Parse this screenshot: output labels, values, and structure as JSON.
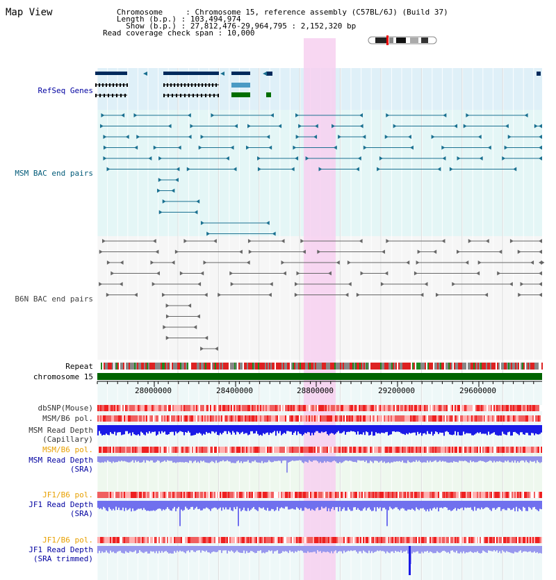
{
  "view": {
    "title": "Map View"
  },
  "info": {
    "chromosome": "   Chromosome     : Chromosome 15, reference assembly (C57BL/6J) (Build 37)",
    "length": "   Length (b.p.) : 103,494,974",
    "show": "     Show (b.p.) : 27,812,476-29,964,795 : 2,152,320 bp",
    "coverage": "Read coverage check span : 10,000"
  },
  "tracks": {
    "refseq": "RefSeq Genes",
    "msm_bac": "MSM BAC end pairs",
    "b6n_bac": "B6N BAC end pairs",
    "repeat": "Repeat",
    "chromosome": "chromosome 15",
    "dbsnp": "dbSNP(Mouse)",
    "msm_b6_pol_1": "MSM/B6 pol.",
    "msm_depth_cap_1": "MSM Read Depth",
    "msm_depth_cap_2": "(Capillary)",
    "msm_b6_pol_2": "MSM/B6 pol.",
    "msm_depth_sra_1": "MSM Read Depth",
    "msm_depth_sra_2": "(SRA)",
    "jf1_b6_pol_1": "JF1/B6 pol.",
    "jf1_depth_sra_1": "JF1 Read Depth",
    "jf1_depth_sra_2": "(SRA)",
    "jf1_b6_pol_2": "JF1/B6 pol.",
    "jf1_depth_trim_1": "JF1 Read Depth",
    "jf1_depth_trim_2": "(SRA trimmed)"
  },
  "ruler": {
    "ticks": [
      "28000000",
      "28400000",
      "28800000",
      "29200000",
      "29600000"
    ]
  },
  "colors": {
    "refseq_bg": "#dff0f8",
    "msm_bg": "#e4f6f6",
    "b6n_bg": "#f4f4f4",
    "highlight": "#f5d5f0",
    "chromosome_bar": "#006400",
    "depth_blue": "#1a1ae6",
    "depth_light": "#8888ee",
    "pol_red": "#ee3333",
    "teal_feature": "#1a7090",
    "navy_gene": "#002a5c"
  }
}
